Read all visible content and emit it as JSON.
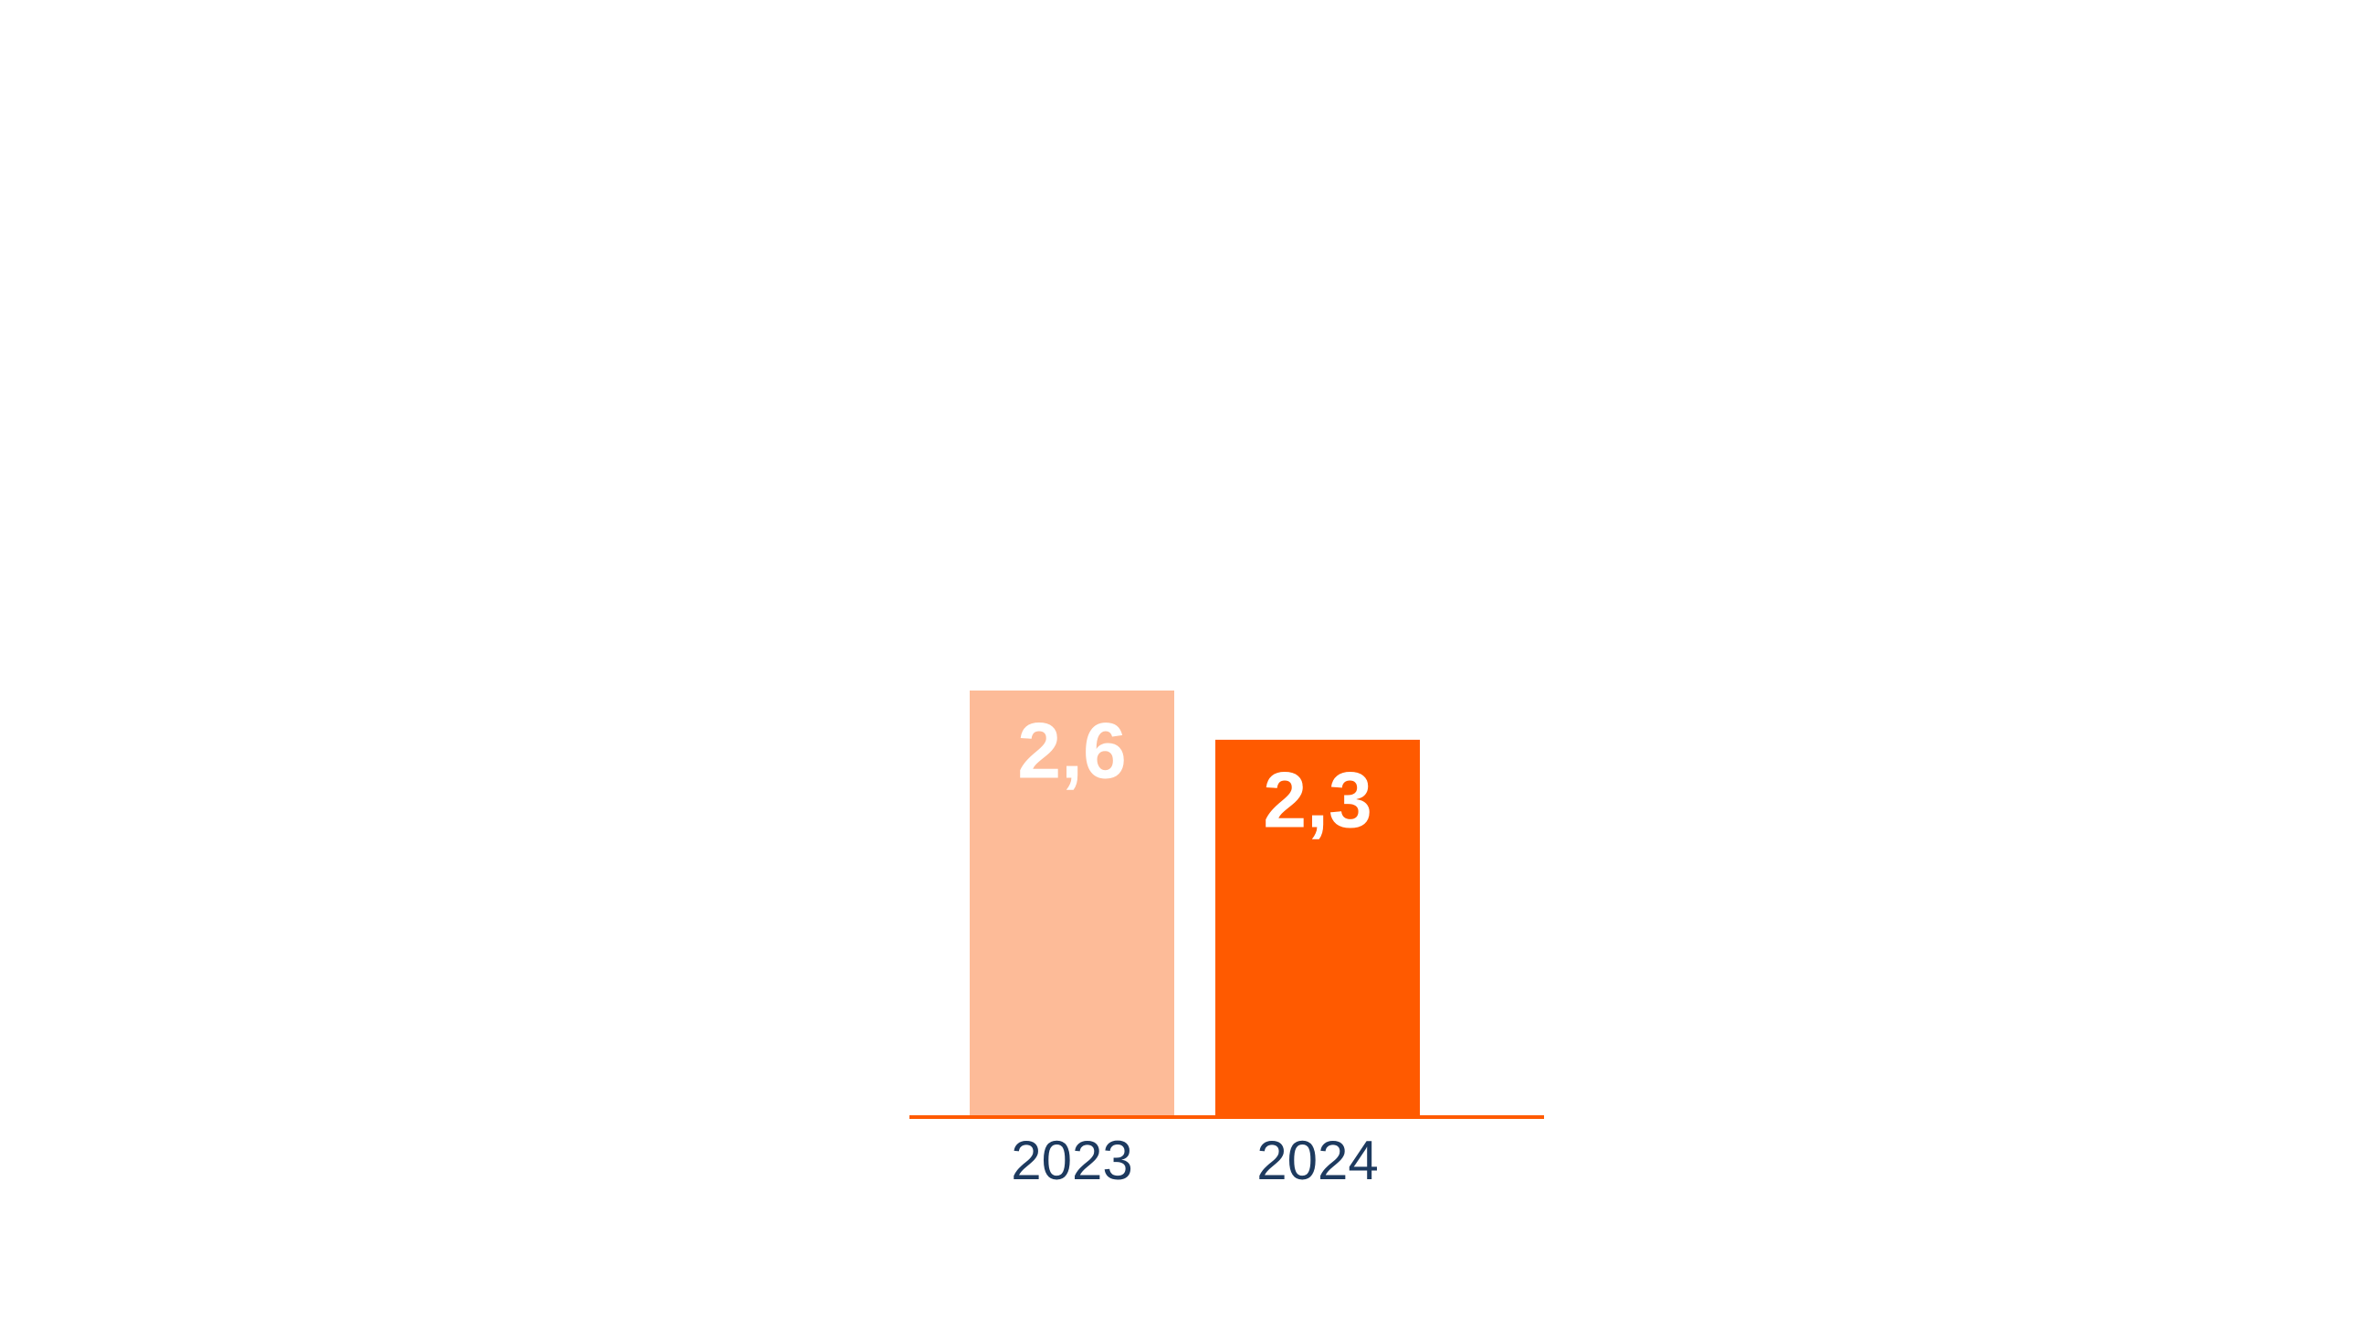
{
  "chart_data": {
    "type": "bar",
    "categories": [
      "2023",
      "2024"
    ],
    "values": [
      2.6,
      2.3
    ],
    "value_labels": [
      "2,6",
      "2,3"
    ],
    "colors": [
      "#fdbb98",
      "#ff5a00"
    ],
    "axis_color": "#ff5a00"
  }
}
